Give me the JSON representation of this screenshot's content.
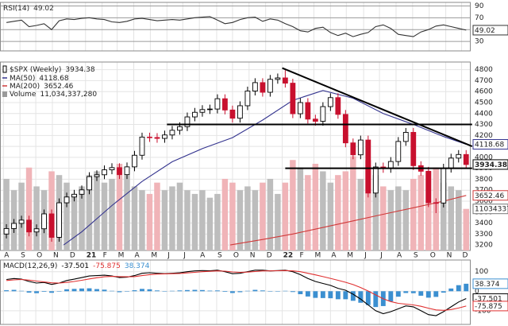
{
  "chart_data": [
    {
      "type": "line",
      "title": "RSI(14)",
      "ylim": [
        14,
        96
      ],
      "yticks": [
        30,
        50,
        70,
        90
      ],
      "series": [
        {
          "color": "#333333",
          "values": [
            62,
            64,
            66,
            55,
            57,
            60,
            50,
            65,
            68,
            67,
            69,
            70,
            68,
            67,
            63,
            62,
            64,
            68,
            69,
            67,
            65,
            66,
            67,
            66,
            68,
            70,
            71,
            72,
            66,
            60,
            62,
            67,
            70,
            71,
            64,
            68,
            66,
            60,
            55,
            48,
            46,
            52,
            54,
            45,
            40,
            44,
            38,
            42,
            45,
            55,
            58,
            52,
            42,
            40,
            38,
            46,
            50,
            56,
            58,
            55,
            52,
            49.02
          ]
        }
      ]
    },
    {
      "type": "candlestick",
      "title": "$SPX (Weekly)",
      "up_color": "#000000",
      "down_color": "#c8102e",
      "open": [
        3300,
        3350,
        3397,
        3427,
        3319,
        3348,
        3484,
        3270,
        3585,
        3638,
        3663,
        3703,
        3824,
        3841,
        3886,
        3906,
        3842,
        3913,
        4019,
        4185,
        4181,
        4173,
        4204,
        4247,
        4280,
        4369,
        4411,
        4436,
        4441,
        4535,
        4432,
        4357,
        4471,
        4605,
        4682,
        4594,
        4712,
        4725,
        4677,
        4398,
        4500,
        4349,
        4329,
        4463,
        4545,
        4392,
        4132,
        4023,
        4158,
        3674,
        3912,
        3899,
        3962,
        4145,
        4228,
        3924,
        3873,
        3586,
        3583,
        3901,
        3993,
        4026
      ],
      "high": [
        3390,
        3437,
        3467,
        3467,
        3388,
        3524,
        3524,
        3625,
        3678,
        3703,
        3743,
        3864,
        3881,
        3926,
        3946,
        3946,
        3953,
        4059,
        4225,
        4225,
        4221,
        4244,
        4287,
        4320,
        4409,
        4451,
        4476,
        4481,
        4575,
        4575,
        4472,
        4511,
        4645,
        4722,
        4722,
        4752,
        4765,
        4796,
        4717,
        4540,
        4540,
        4389,
        4503,
        4585,
        4585,
        4432,
        4172,
        4198,
        4198,
        3952,
        3952,
        4002,
        4185,
        4268,
        4268,
        3964,
        3913,
        3626,
        3941,
        4033,
        4066,
        4066
      ],
      "low": [
        3260,
        3310,
        3357,
        3279,
        3279,
        3308,
        3230,
        3230,
        3545,
        3598,
        3623,
        3663,
        3784,
        3801,
        3846,
        3802,
        3802,
        3873,
        3979,
        4141,
        4133,
        4133,
        4164,
        4207,
        4240,
        4329,
        4371,
        4396,
        4401,
        4392,
        4317,
        4317,
        4431,
        4565,
        4554,
        4554,
        4672,
        4637,
        4358,
        4358,
        4309,
        4289,
        4289,
        4423,
        4352,
        4092,
        3983,
        3983,
        3634,
        3634,
        3859,
        3859,
        3922,
        4105,
        3884,
        3833,
        3546,
        3491,
        3543,
        3861,
        3953,
        3894
      ],
      "close": [
        3350,
        3397,
        3427,
        3319,
        3348,
        3484,
        3270,
        3585,
        3638,
        3663,
        3703,
        3824,
        3841,
        3886,
        3906,
        3842,
        3913,
        4019,
        4185,
        4181,
        4173,
        4204,
        4247,
        4280,
        4369,
        4411,
        4436,
        4441,
        4535,
        4432,
        4357,
        4471,
        4605,
        4682,
        4594,
        4712,
        4725,
        4677,
        4398,
        4500,
        4349,
        4329,
        4463,
        4545,
        4392,
        4132,
        4023,
        4158,
        3674,
        3912,
        3899,
        3962,
        4145,
        4228,
        3924,
        3873,
        3586,
        3583,
        3901,
        3993,
        4026,
        3934.38
      ],
      "xlim": [
        -0.85,
        61.5
      ],
      "xticks": [
        {
          "value": -0.4,
          "label": "A"
        },
        {
          "value": 1.8,
          "label": "S"
        },
        {
          "value": 3.9,
          "label": "O"
        },
        {
          "value": 6.1,
          "label": "N"
        },
        {
          "value": 8.3,
          "label": "D"
        },
        {
          "value": 10.5,
          "label": "21"
        },
        {
          "value": 12.7,
          "label": "F"
        },
        {
          "value": 14.7,
          "label": "M"
        },
        {
          "value": 16.9,
          "label": "A"
        },
        {
          "value": 19.1,
          "label": "M"
        },
        {
          "value": 21.3,
          "label": "J"
        },
        {
          "value": 23.4,
          "label": "J"
        },
        {
          "value": 25.6,
          "label": "A"
        },
        {
          "value": 27.9,
          "label": "S"
        },
        {
          "value": 30,
          "label": "O"
        },
        {
          "value": 32.2,
          "label": "N"
        },
        {
          "value": 34.4,
          "label": "D"
        },
        {
          "value": 36.6,
          "label": "22"
        },
        {
          "value": 38.8,
          "label": "F"
        },
        {
          "value": 40.8,
          "label": "M"
        },
        {
          "value": 43,
          "label": "A"
        },
        {
          "value": 45.1,
          "label": "M"
        },
        {
          "value": 47.4,
          "label": "J"
        },
        {
          "value": 49.5,
          "label": "J"
        },
        {
          "value": 51.7,
          "label": "A"
        },
        {
          "value": 53.9,
          "label": "S"
        },
        {
          "value": 56.1,
          "label": "O"
        },
        {
          "value": 58.3,
          "label": "N"
        },
        {
          "value": 60.4,
          "label": "D"
        }
      ],
      "ylim": [
        3150,
        4870
      ],
      "yticks": [
        3200,
        3300,
        3400,
        3500,
        3600,
        3700,
        3800,
        3900,
        4000,
        4100,
        4200,
        4300,
        4400,
        4500,
        4600,
        4700,
        4800
      ],
      "grid": true,
      "overlays": [
        {
          "name": "MA(50)",
          "color": "#34348f",
          "x": [
            7.6,
            10,
            14,
            18,
            22,
            26,
            30,
            34,
            38,
            42,
            46,
            50,
            54,
            58,
            61
          ],
          "values": [
            3200,
            3320,
            3560,
            3780,
            3960,
            4080,
            4180,
            4340,
            4520,
            4610,
            4540,
            4400,
            4300,
            4190,
            4118.68
          ]
        },
        {
          "name": "MA(200)",
          "color": "#d03a3a",
          "x": [
            29.7,
            34,
            38,
            42,
            46,
            50,
            54,
            58,
            61
          ],
          "values": [
            3200,
            3250,
            3300,
            3360,
            3420,
            3480,
            3540,
            3600,
            3652.46
          ]
        }
      ],
      "volume": {
        "name": "Volume",
        "value_label": "11,034,337,280",
        "ylim": [
          0,
          50000000000.0
        ],
        "values": [
          19000000000.0,
          16000000000.0,
          18000000000.0,
          22000000000.0,
          17000000000.0,
          16000000000.0,
          21000000000.0,
          20000000000.0,
          18000000000.0,
          15000000000.0,
          17000000000.0,
          20000000000.0,
          21000000000.0,
          18000000000.0,
          19000000000.0,
          23000000000.0,
          20000000000.0,
          17000000000.0,
          16000000000.0,
          15000000000.0,
          18000000000.0,
          16000000000.0,
          17000000000.0,
          18000000000.0,
          16000000000.0,
          15000000000.0,
          16000000000.0,
          14000000000.0,
          15000000000.0,
          19000000000.0,
          18000000000.0,
          16000000000.0,
          17000000000.0,
          16000000000.0,
          18000000000.0,
          19000000000.0,
          15000000000.0,
          18000000000.0,
          24000000000.0,
          22000000000.0,
          20000000000.0,
          23000000000.0,
          21000000000.0,
          18000000000.0,
          20000000000.0,
          21000000000.0,
          25000000000.0,
          19000000000.0,
          24000000000.0,
          20000000000.0,
          17000000000.0,
          16000000000.0,
          17000000000.0,
          16000000000.0,
          19000000000.0,
          20000000000.0,
          21000000000.0,
          22000000000.0,
          18000000000.0,
          17000000000.0,
          16000000000.0,
          11034337280
        ]
      },
      "trendlines": [
        {
          "x": [
            36.6,
            61.8
          ],
          "y": [
            4815,
            4100
          ]
        },
        {
          "x": [
            21.3,
            61.8
          ],
          "y": [
            4300,
            4300
          ]
        },
        {
          "x": [
            37,
            61.8
          ],
          "y": [
            3900,
            3900
          ]
        }
      ]
    },
    {
      "type": "line",
      "title": "MACD(12,26,9)",
      "ylim": [
        -170,
        160
      ],
      "yticks": [
        -100,
        0,
        100
      ],
      "series": [
        {
          "color": "#000000",
          "values": [
            60,
            65,
            62,
            50,
            42,
            45,
            35,
            42,
            55,
            62,
            70,
            78,
            80,
            82,
            78,
            70,
            72,
            80,
            92,
            95,
            92,
            90,
            92,
            95,
            100,
            104,
            106,
            105,
            108,
            100,
            90,
            92,
            100,
            108,
            108,
            104,
            106,
            108,
            100,
            85,
            65,
            50,
            40,
            30,
            15,
            5,
            -15,
            -40,
            -70,
            -100,
            -115,
            -105,
            -90,
            -75,
            -80,
            -100,
            -120,
            -125,
            -105,
            -80,
            -55,
            -37.501
          ]
        },
        {
          "color": "#e03030",
          "values": [
            55,
            58,
            60,
            57,
            52,
            48,
            43,
            42,
            45,
            50,
            56,
            63,
            69,
            74,
            76,
            75,
            74,
            75,
            80,
            85,
            88,
            89,
            90,
            91,
            94,
            97,
            100,
            102,
            104,
            103,
            99,
            97,
            98,
            101,
            104,
            104,
            105,
            106,
            104,
            100,
            92,
            84,
            75,
            66,
            56,
            46,
            34,
            19,
            1,
            -19,
            -39,
            -53,
            -62,
            -66,
            -70,
            -77,
            -87,
            -96,
            -98,
            -94,
            -86,
            -75.875
          ]
        },
        {
          "color": "#3b8fd0",
          "style": "bar",
          "values": [
            5,
            7,
            2,
            -7,
            -10,
            -3,
            -8,
            0,
            10,
            12,
            14,
            15,
            11,
            8,
            2,
            -5,
            -2,
            5,
            12,
            10,
            4,
            1,
            2,
            4,
            6,
            7,
            6,
            3,
            4,
            -3,
            -9,
            -5,
            2,
            7,
            4,
            0,
            1,
            2,
            -4,
            -15,
            -27,
            -34,
            -35,
            -36,
            -41,
            -41,
            -49,
            -59,
            -71,
            -81,
            -76,
            -52,
            -28,
            -9,
            -10,
            -23,
            -33,
            -29,
            -7,
            14,
            31,
            38.374
          ]
        }
      ]
    }
  ]
}
